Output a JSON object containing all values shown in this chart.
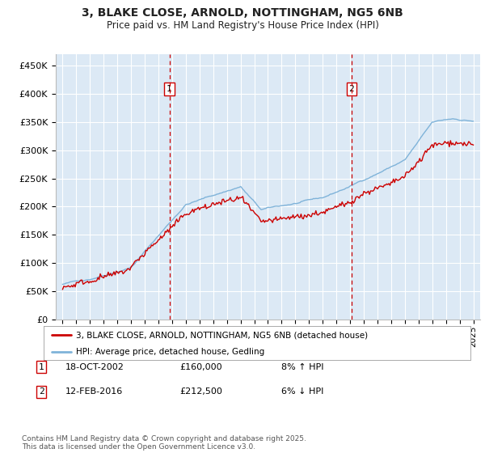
{
  "title_line1": "3, BLAKE CLOSE, ARNOLD, NOTTINGHAM, NG5 6NB",
  "title_line2": "Price paid vs. HM Land Registry's House Price Index (HPI)",
  "ylabel_ticks": [
    "£0",
    "£50K",
    "£100K",
    "£150K",
    "£200K",
    "£250K",
    "£300K",
    "£350K",
    "£400K",
    "£450K"
  ],
  "ytick_values": [
    0,
    50000,
    100000,
    150000,
    200000,
    250000,
    300000,
    350000,
    400000,
    450000
  ],
  "ylim": [
    0,
    470000
  ],
  "xlim_start": 1994.5,
  "xlim_end": 2025.5,
  "background_color": "#dce9f5",
  "grid_color": "#ffffff",
  "red_line_color": "#cc0000",
  "blue_line_color": "#7fb3d9",
  "marker1_date": 2002.8,
  "marker2_date": 2016.1,
  "marker1_value": 160000,
  "marker2_value": 212500,
  "footnote": "Contains HM Land Registry data © Crown copyright and database right 2025.\nThis data is licensed under the Open Government Licence v3.0.",
  "legend_entry1": "3, BLAKE CLOSE, ARNOLD, NOTTINGHAM, NG5 6NB (detached house)",
  "legend_entry2": "HPI: Average price, detached house, Gedling",
  "sale1_date": "18-OCT-2002",
  "sale1_price": "£160,000",
  "sale1_hpi": "8% ↑ HPI",
  "sale2_date": "12-FEB-2016",
  "sale2_price": "£212,500",
  "sale2_hpi": "6% ↓ HPI"
}
